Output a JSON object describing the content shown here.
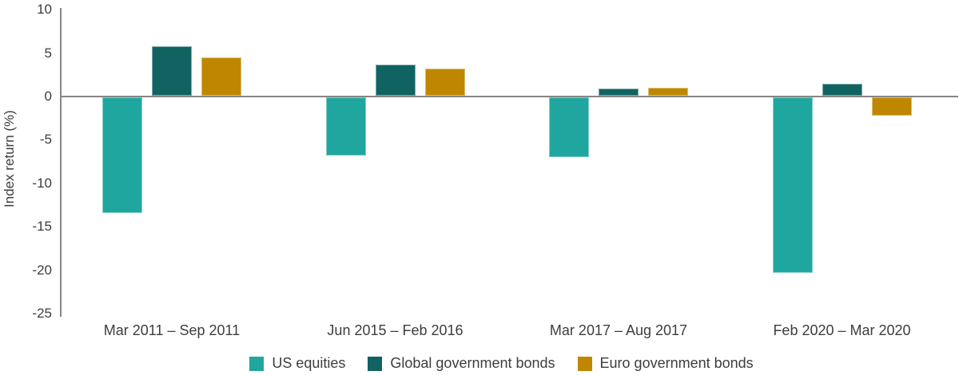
{
  "chart": {
    "ylabel": "Index return (%)"
  },
  "chart_data": {
    "type": "bar",
    "title": "",
    "xlabel": "",
    "ylabel": "Index return (%)",
    "categories": [
      "Mar 2011 – Sep 2011",
      "Jun 2015 – Feb 2016",
      "Mar 2017 – Aug 2017",
      "Feb 2020 – Mar 2020"
    ],
    "series": [
      {
        "name": "US equities",
        "color": "#1fa69f",
        "values": [
          -13.3,
          -6.7,
          -6.9,
          -20.2
        ]
      },
      {
        "name": "Global government bonds",
        "color": "#116361",
        "values": [
          5.7,
          3.6,
          0.8,
          1.4
        ]
      },
      {
        "name": "Euro government bonds",
        "color": "#bf8700",
        "values": [
          4.4,
          3.1,
          0.9,
          -2.1
        ]
      }
    ],
    "yticks": [
      10,
      5,
      0,
      -5,
      -10,
      -15,
      -20,
      -25
    ],
    "ylim": [
      -25,
      10
    ],
    "grid": false,
    "legend_position": "bottom",
    "axis_color": "#868686",
    "text_color": "#3d3d3d"
  }
}
